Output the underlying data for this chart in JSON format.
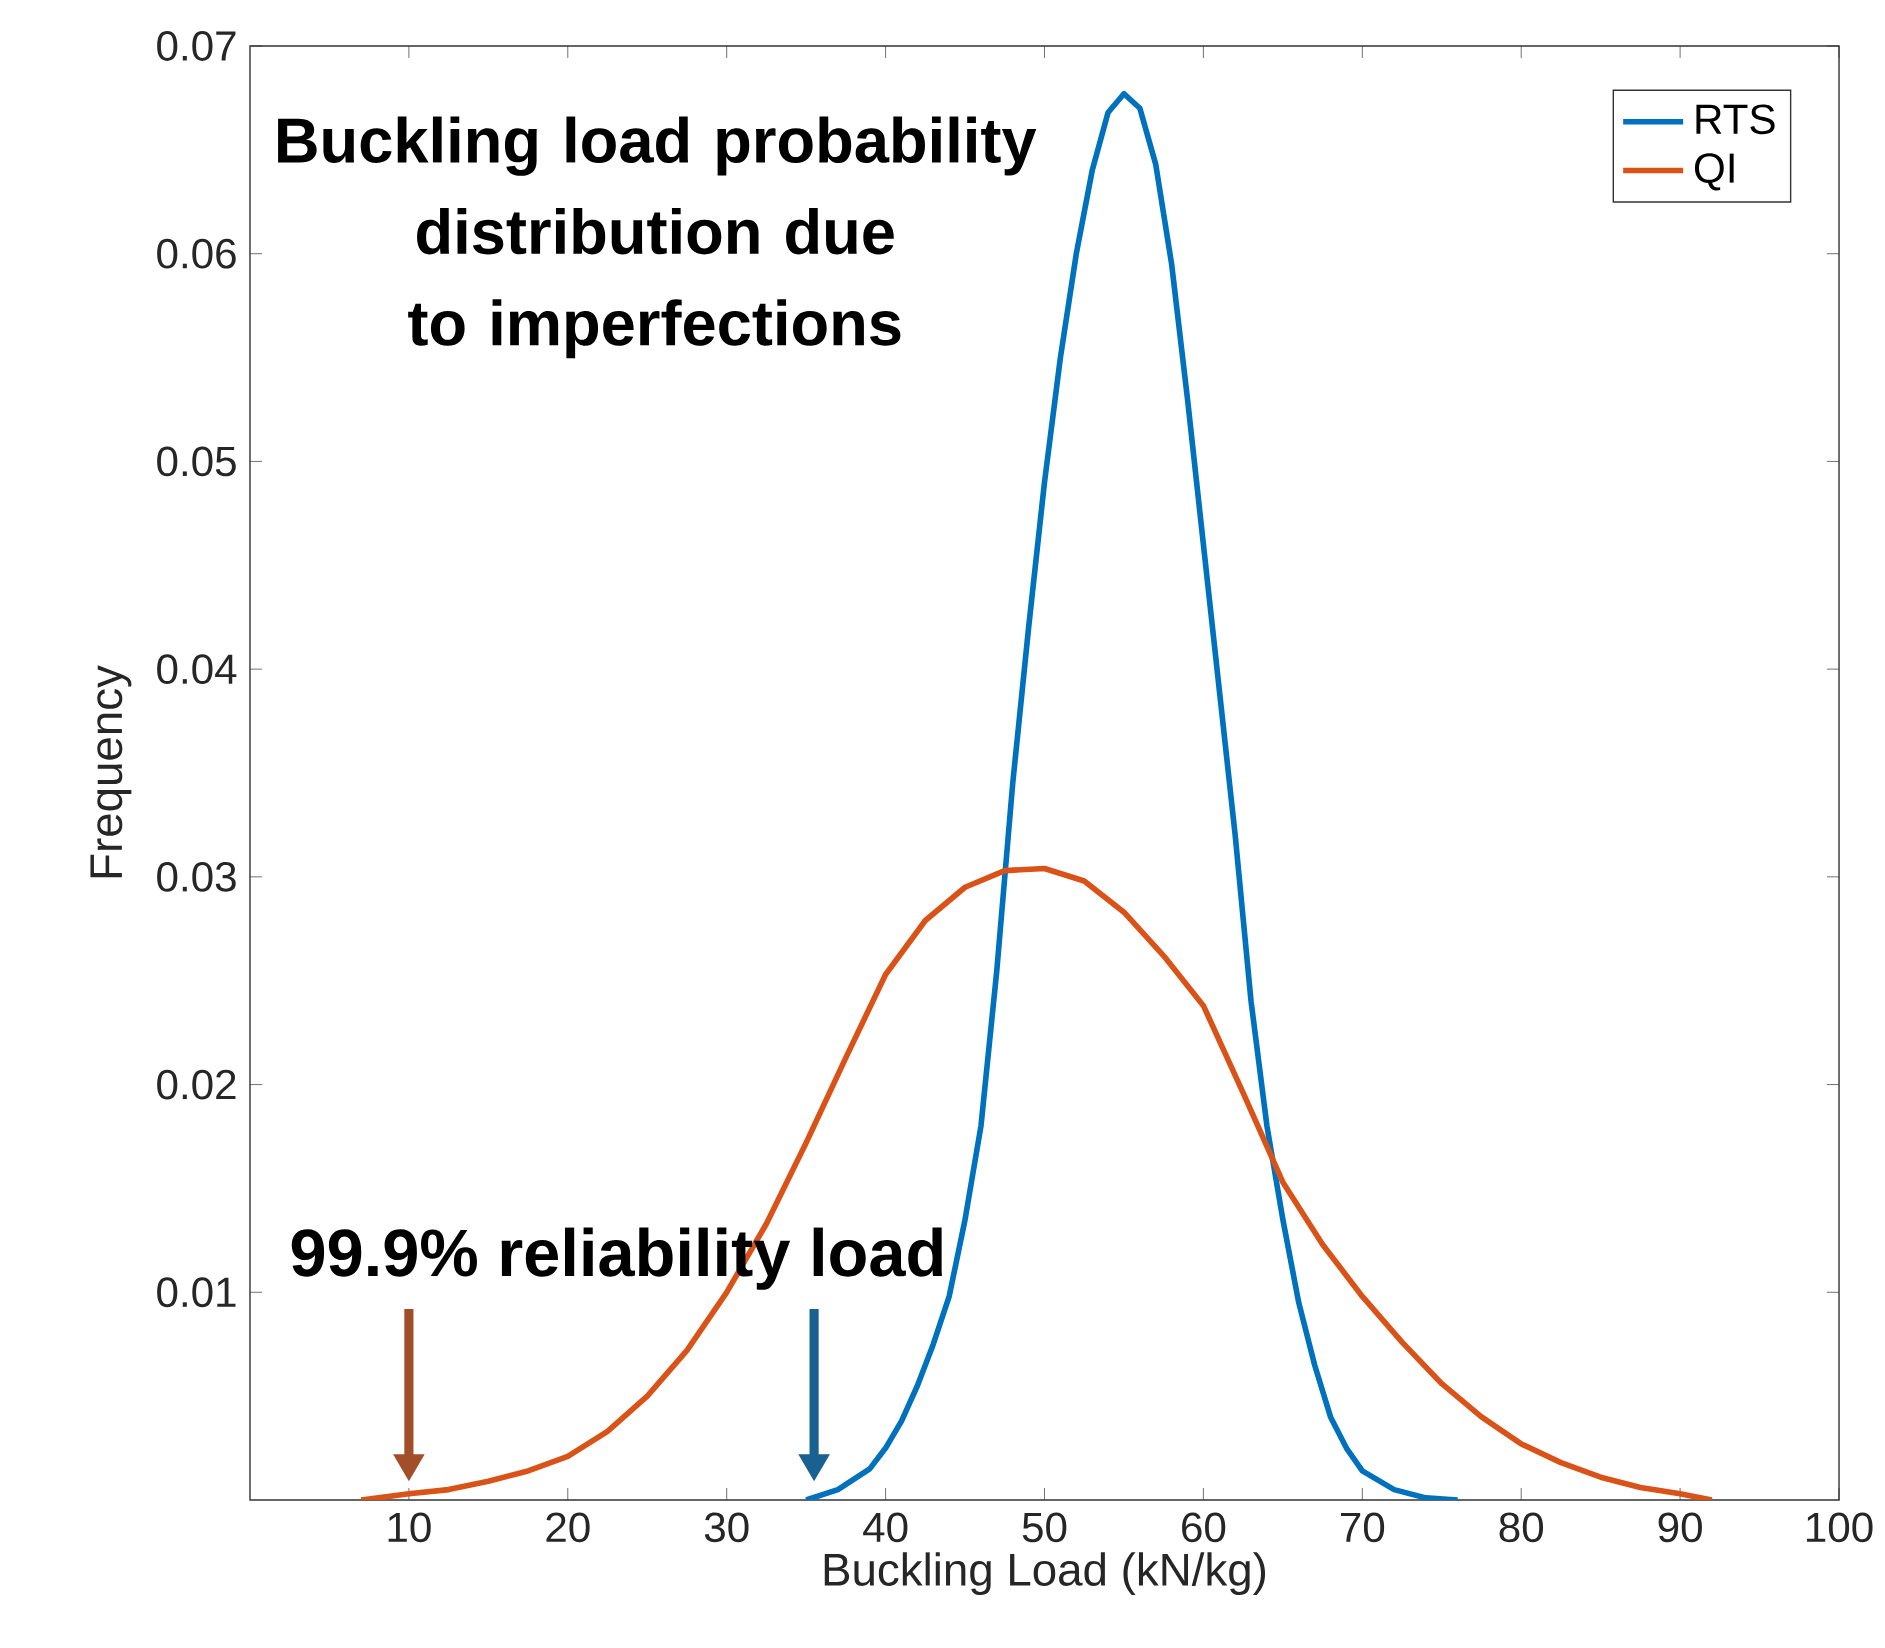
{
  "chart_data": {
    "type": "line",
    "xlabel": "Buckling Load (kN/kg)",
    "ylabel": "Frequency",
    "xlim": [
      0,
      100
    ],
    "ylim": [
      0,
      0.07
    ],
    "xticks": [
      10,
      20,
      30,
      40,
      50,
      60,
      70,
      80,
      90,
      100
    ],
    "yticks": [
      0.01,
      0.02,
      0.03,
      0.04,
      0.05,
      0.06,
      0.07
    ],
    "legend": "top right",
    "grid": false,
    "annotations": [
      "Buckling load probability distribution due to imperfections",
      "99.9% reliability load"
    ],
    "series": [
      {
        "name": "RTS",
        "color": "#0072bd",
        "x": [
          35,
          37,
          39,
          40,
          41,
          42,
          43,
          44,
          45,
          46,
          47,
          48,
          49,
          50,
          51,
          52,
          53,
          54,
          55,
          56,
          57,
          58,
          59,
          60,
          61,
          62,
          63,
          64,
          65,
          66,
          67,
          68,
          69,
          70,
          72,
          74,
          76
        ],
        "values": [
          0,
          0.0005,
          0.0015,
          0.0025,
          0.0038,
          0.0055,
          0.0075,
          0.0098,
          0.0135,
          0.018,
          0.0255,
          0.0345,
          0.042,
          0.049,
          0.055,
          0.06,
          0.064,
          0.0668,
          0.0677,
          0.067,
          0.0643,
          0.0595,
          0.053,
          0.046,
          0.039,
          0.032,
          0.024,
          0.018,
          0.0135,
          0.0095,
          0.0065,
          0.004,
          0.0025,
          0.0014,
          0.0005,
          0.0001,
          0
        ]
      },
      {
        "name": "QI",
        "color": "#d95319",
        "x": [
          7,
          10,
          12.5,
          15,
          17.5,
          20,
          22.5,
          25,
          27.5,
          30,
          32.5,
          35,
          37.5,
          40,
          42.5,
          45,
          47.5,
          50,
          52.5,
          55,
          57.5,
          60,
          62.5,
          65,
          67.5,
          70,
          72.5,
          75,
          77.5,
          80,
          82.5,
          85,
          87.5,
          90,
          92
        ],
        "values": [
          0,
          0.0003,
          0.0005,
          0.0009,
          0.0014,
          0.0021,
          0.0033,
          0.005,
          0.0072,
          0.01,
          0.0133,
          0.0172,
          0.0213,
          0.0253,
          0.0279,
          0.0295,
          0.0303,
          0.0304,
          0.0298,
          0.0283,
          0.0262,
          0.0238,
          0.0196,
          0.0153,
          0.0123,
          0.0098,
          0.0076,
          0.0056,
          0.004,
          0.0027,
          0.0018,
          0.0011,
          0.0006,
          0.0003,
          0
        ]
      }
    ]
  }
}
